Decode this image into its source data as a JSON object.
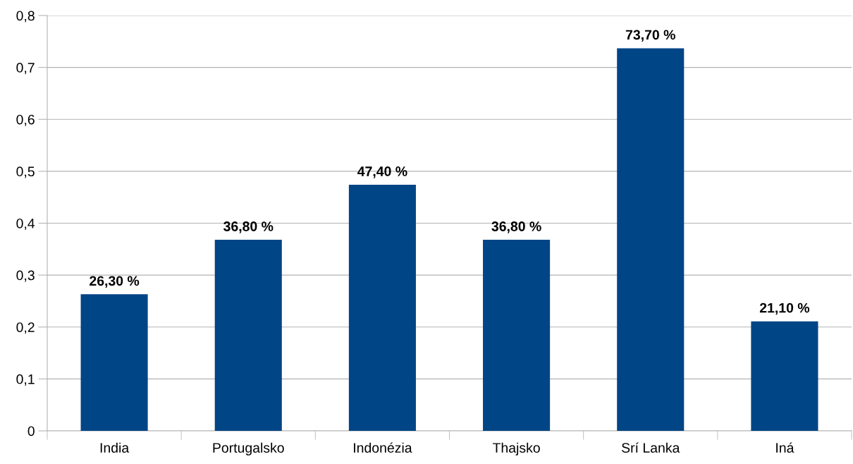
{
  "chart_data": {
    "type": "bar",
    "categories": [
      "India",
      "Portugalsko",
      "Indonézia",
      "Thajsko",
      "Srí Lanka",
      "Iná"
    ],
    "values": [
      0.263,
      0.368,
      0.474,
      0.368,
      0.737,
      0.211
    ],
    "value_labels": [
      "26,30 %",
      "36,80 %",
      "47,40 %",
      "36,80 %",
      "73,70 %",
      "21,10 %"
    ],
    "color": "#004586",
    "ylim": [
      0,
      0.8
    ],
    "yticks": [
      0,
      {
        "value": 0.1,
        "label": "0,1"
      },
      {
        "value": 0.2,
        "label": "0,2"
      },
      {
        "value": 0.3,
        "label": "0,3"
      },
      {
        "value": 0.4,
        "label": "0,4"
      },
      {
        "value": 0.5,
        "label": "0,5"
      },
      {
        "value": 0.6,
        "label": "0,6"
      },
      {
        "value": 0.7,
        "label": "0,7"
      },
      {
        "value": 0.8,
        "label": "0,8"
      }
    ],
    "grid": "y",
    "legend": false
  }
}
